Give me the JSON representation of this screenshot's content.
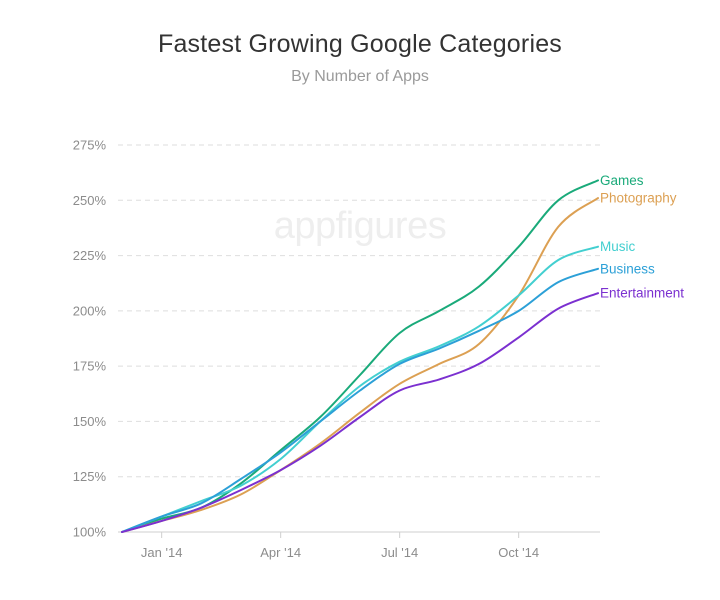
{
  "chart_data": {
    "type": "line",
    "title": "Fastest Growing Google Categories",
    "subtitle": "By Number of Apps",
    "watermark": "appfigures",
    "xlabel": "",
    "ylabel": "",
    "x_ticks": [
      "Jan '14",
      "Apr '14",
      "Jul '14",
      "Oct '14"
    ],
    "y_ticks": [
      "100%",
      "125%",
      "150%",
      "175%",
      "200%",
      "225%",
      "250%",
      "275%"
    ],
    "ylim": [
      100,
      275
    ],
    "grid": true,
    "x": [
      0,
      1,
      2,
      3,
      4,
      5,
      6,
      7,
      8,
      9,
      10,
      11,
      12
    ],
    "x_tick_positions": [
      1,
      4,
      7,
      10
    ],
    "series": [
      {
        "name": "Games",
        "color": "#1aaa7a",
        "values": [
          100,
          106,
          111,
          122,
          137,
          152,
          171,
          190,
          200,
          211,
          229,
          250,
          259
        ]
      },
      {
        "name": "Photography",
        "color": "#dca053",
        "values": [
          100,
          105,
          110,
          117,
          128,
          140,
          154,
          167,
          176,
          185,
          207,
          238,
          251
        ]
      },
      {
        "name": "Music",
        "color": "#43cfd0",
        "values": [
          100,
          107,
          114,
          121,
          133,
          150,
          166,
          177,
          184,
          193,
          207,
          223,
          229
        ]
      },
      {
        "name": "Business",
        "color": "#2ca0d7",
        "values": [
          100,
          107,
          113,
          124,
          136,
          150,
          164,
          176,
          183,
          191,
          200,
          213,
          219
        ]
      },
      {
        "name": "Entertainment",
        "color": "#7b30d0",
        "values": [
          100,
          105,
          111,
          119,
          128,
          139,
          152,
          164,
          169,
          176,
          188,
          201,
          208
        ]
      }
    ],
    "legend": "right-end-labels"
  }
}
